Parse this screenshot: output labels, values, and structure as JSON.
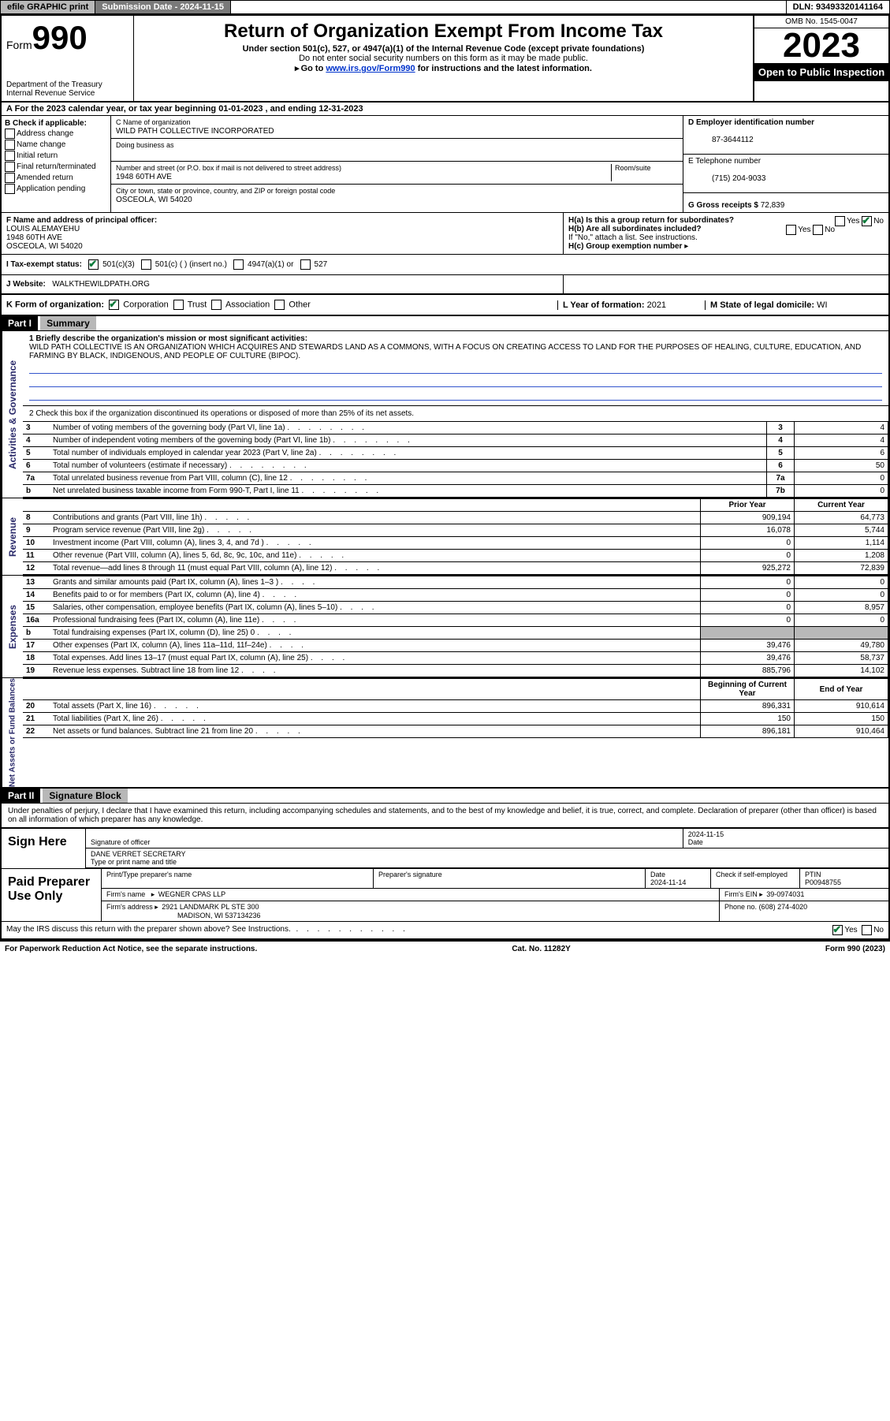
{
  "topbar": {
    "efile": "efile GRAPHIC print",
    "sub_label": "Submission Date - 2024-11-15",
    "dln": "DLN: 93493320141164"
  },
  "header": {
    "form_label": "Form",
    "form_num": "990",
    "dept": "Department of the Treasury",
    "irs": "Internal Revenue Service",
    "title": "Return of Organization Exempt From Income Tax",
    "sub1": "Under section 501(c), 527, or 4947(a)(1) of the Internal Revenue Code (except private foundations)",
    "sub2": "Do not enter social security numbers on this form as it may be made public.",
    "sub3_pre": "Go to ",
    "sub3_link": "www.irs.gov/Form990",
    "sub3_post": " for instructions and the latest information.",
    "omb": "OMB No. 1545-0047",
    "year": "2023",
    "open": "Open to Public Inspection"
  },
  "rowA": "A For the 2023 calendar year, or tax year beginning 01-01-2023    , and ending 12-31-2023",
  "colB": {
    "header": "B Check if applicable:",
    "opts": [
      "Address change",
      "Name change",
      "Initial return",
      "Final return/terminated",
      "Amended return",
      "Application pending"
    ]
  },
  "colC": {
    "name_label": "C Name of organization",
    "name": "WILD PATH COLLECTIVE INCORPORATED",
    "dba_label": "Doing business as",
    "addr_label": "Number and street (or P.O. box if mail is not delivered to street address)",
    "room_label": "Room/suite",
    "addr": "1948 60TH AVE",
    "city_label": "City or town, state or province, country, and ZIP or foreign postal code",
    "city": "OSCEOLA, WI  54020"
  },
  "colD": {
    "ein_label": "D Employer identification number",
    "ein": "87-3644112",
    "tel_label": "E Telephone number",
    "tel": "(715) 204-9033",
    "gross_label": "G Gross receipts $",
    "gross": "72,839"
  },
  "rowF": {
    "label": "F Name and address of principal officer:",
    "name": "LOUIS ALEMAYEHU",
    "addr1": "1948 60TH AVE",
    "addr2": "OSCEOLA, WI  54020"
  },
  "rowH": {
    "ha": "H(a)  Is this a group return for subordinates?",
    "hb": "H(b)  Are all subordinates included?",
    "hb_note": "If \"No,\" attach a list. See instructions.",
    "hc": "H(c)  Group exemption number",
    "yes": "Yes",
    "no": "No"
  },
  "rowI": {
    "label": "I   Tax-exempt status:",
    "o1": "501(c)(3)",
    "o2": "501(c) (   ) (insert no.)",
    "o3": "4947(a)(1) or",
    "o4": "527"
  },
  "rowJ": {
    "label": "J   Website:",
    "val": "WALKTHEWILDPATH.ORG"
  },
  "rowK": {
    "label": "K Form of organization:",
    "o1": "Corporation",
    "o2": "Trust",
    "o3": "Association",
    "o4": "Other",
    "L_label": "L Year of formation:",
    "L_val": "2021",
    "M_label": "M State of legal domicile:",
    "M_val": "WI"
  },
  "part1": {
    "hdr": "Part I",
    "title": "Summary",
    "vert1": "Activities & Governance",
    "vert2": "Revenue",
    "vert3": "Expenses",
    "vert4": "Net Assets or Fund Balances",
    "line1_label": "1   Briefly describe the organization's mission or most significant activities:",
    "mission": "WILD PATH COLLECTIVE IS AN ORGANIZATION WHICH ACQUIRES AND STEWARDS LAND AS A COMMONS, WITH A FOCUS ON CREATING ACCESS TO LAND FOR THE PURPOSES OF HEALING, CULTURE, EDUCATION, AND FARMING BY BLACK, INDIGENOUS, AND PEOPLE OF CULTURE (BIPOC).",
    "line2": "2   Check this box     if the organization discontinued its operations or disposed of more than 25% of its net assets.",
    "rows_gov": [
      {
        "n": "3",
        "t": "Number of voting members of the governing body (Part VI, line 1a)",
        "box": "3",
        "v": "4"
      },
      {
        "n": "4",
        "t": "Number of independent voting members of the governing body (Part VI, line 1b)",
        "box": "4",
        "v": "4"
      },
      {
        "n": "5",
        "t": "Total number of individuals employed in calendar year 2023 (Part V, line 2a)",
        "box": "5",
        "v": "6"
      },
      {
        "n": "6",
        "t": "Total number of volunteers (estimate if necessary)",
        "box": "6",
        "v": "50"
      },
      {
        "n": "7a",
        "t": "Total unrelated business revenue from Part VIII, column (C), line 12",
        "box": "7a",
        "v": "0"
      },
      {
        "n": "b",
        "t": "Net unrelated business taxable income from Form 990-T, Part I, line 11",
        "box": "7b",
        "v": "0"
      }
    ],
    "hdr_prior": "Prior Year",
    "hdr_curr": "Current Year",
    "rows_rev": [
      {
        "n": "8",
        "t": "Contributions and grants (Part VIII, line 1h)",
        "p": "909,194",
        "c": "64,773"
      },
      {
        "n": "9",
        "t": "Program service revenue (Part VIII, line 2g)",
        "p": "16,078",
        "c": "5,744"
      },
      {
        "n": "10",
        "t": "Investment income (Part VIII, column (A), lines 3, 4, and 7d )",
        "p": "0",
        "c": "1,114"
      },
      {
        "n": "11",
        "t": "Other revenue (Part VIII, column (A), lines 5, 6d, 8c, 9c, 10c, and 11e)",
        "p": "0",
        "c": "1,208"
      },
      {
        "n": "12",
        "t": "Total revenue—add lines 8 through 11 (must equal Part VIII, column (A), line 12)",
        "p": "925,272",
        "c": "72,839"
      }
    ],
    "rows_exp": [
      {
        "n": "13",
        "t": "Grants and similar amounts paid (Part IX, column (A), lines 1–3 )",
        "p": "0",
        "c": "0"
      },
      {
        "n": "14",
        "t": "Benefits paid to or for members (Part IX, column (A), line 4)",
        "p": "0",
        "c": "0"
      },
      {
        "n": "15",
        "t": "Salaries, other compensation, employee benefits (Part IX, column (A), lines 5–10)",
        "p": "0",
        "c": "8,957"
      },
      {
        "n": "16a",
        "t": "Professional fundraising fees (Part IX, column (A), line 11e)",
        "p": "0",
        "c": "0"
      },
      {
        "n": "b",
        "t": "Total fundraising expenses (Part IX, column (D), line 25) 0",
        "p": "grey",
        "c": "grey"
      },
      {
        "n": "17",
        "t": "Other expenses (Part IX, column (A), lines 11a–11d, 11f–24e)",
        "p": "39,476",
        "c": "49,780"
      },
      {
        "n": "18",
        "t": "Total expenses. Add lines 13–17 (must equal Part IX, column (A), line 25)",
        "p": "39,476",
        "c": "58,737"
      },
      {
        "n": "19",
        "t": "Revenue less expenses. Subtract line 18 from line 12",
        "p": "885,796",
        "c": "14,102"
      }
    ],
    "hdr_begin": "Beginning of Current Year",
    "hdr_end": "End of Year",
    "rows_net": [
      {
        "n": "20",
        "t": "Total assets (Part X, line 16)",
        "p": "896,331",
        "c": "910,614"
      },
      {
        "n": "21",
        "t": "Total liabilities (Part X, line 26)",
        "p": "150",
        "c": "150"
      },
      {
        "n": "22",
        "t": "Net assets or fund balances. Subtract line 21 from line 20",
        "p": "896,181",
        "c": "910,464"
      }
    ]
  },
  "part2": {
    "hdr": "Part II",
    "title": "Signature Block",
    "text": "Under penalties of perjury, I declare that I have examined this return, including accompanying schedules and statements, and to the best of my knowledge and belief, it is true, correct, and complete. Declaration of preparer (other than officer) is based on all information of which preparer has any knowledge."
  },
  "sign": {
    "here": "Sign Here",
    "sig_label": "Signature of officer",
    "date_label": "Date",
    "date": "2024-11-15",
    "name": "DANE VERRET SECRETARY",
    "name_label": "Type or print name and title"
  },
  "prep": {
    "label": "Paid Preparer Use Only",
    "h1": "Print/Type preparer's name",
    "h2": "Preparer's signature",
    "h3": "Date",
    "h3v": "2024-11-14",
    "h4": "Check      if self-employed",
    "h5": "PTIN",
    "h5v": "P00948755",
    "firm_label": "Firm's name",
    "firm": "WEGNER CPAS LLP",
    "ein_label": "Firm's EIN",
    "ein": "39-0974031",
    "addr_label": "Firm's address",
    "addr1": "2921 LANDMARK PL STE 300",
    "addr2": "MADISON, WI  537134236",
    "phone_label": "Phone no.",
    "phone": "(608) 274-4020"
  },
  "footer": {
    "discuss": "May the IRS discuss this return with the preparer shown above? See Instructions.",
    "yes": "Yes",
    "no": "No",
    "paperwork": "For Paperwork Reduction Act Notice, see the separate instructions.",
    "cat": "Cat. No. 11282Y",
    "form": "Form 990 (2023)"
  }
}
